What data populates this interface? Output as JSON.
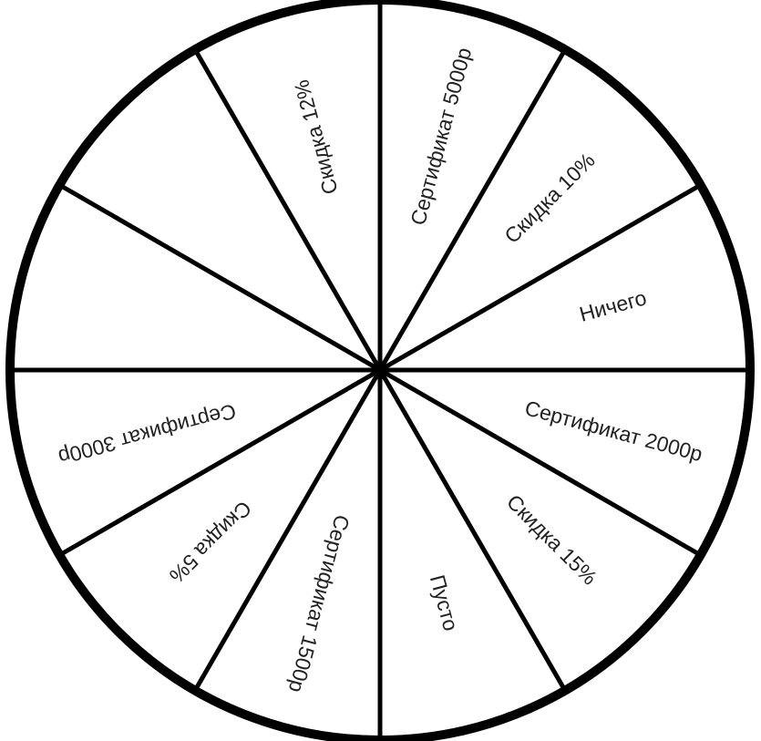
{
  "wheel": {
    "sector_count": 12,
    "sectors": [
      {
        "label": "Сертификат 5000р"
      },
      {
        "label": "Скидка 10%"
      },
      {
        "label": "Ничего"
      },
      {
        "label": "Сертификат 2000р"
      },
      {
        "label": "Скидка 15%"
      },
      {
        "label": "Пусто"
      },
      {
        "label": "Сертификат 1500р"
      },
      {
        "label": "Скидка 5%"
      },
      {
        "label": "Сертификат 3000р"
      },
      {
        "label": ""
      },
      {
        "label": ""
      },
      {
        "label": "Скидка 12%"
      }
    ],
    "colors": {
      "fill": "#ffffff",
      "stroke": "#000000",
      "text": "#222222"
    }
  }
}
